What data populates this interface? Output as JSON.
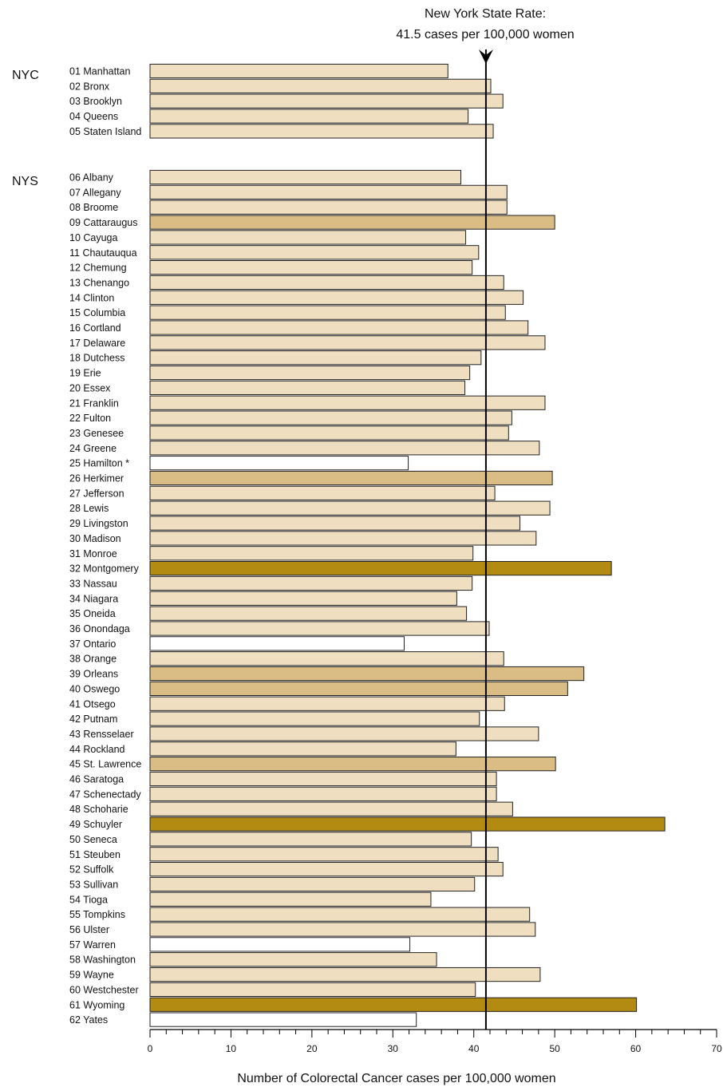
{
  "chart_data": {
    "type": "bar",
    "orientation": "horizontal",
    "xlabel": "Number of Colorectal Cancer cases per 100,000 women",
    "xlim": [
      0,
      70
    ],
    "xticks": [
      0,
      10,
      20,
      30,
      40,
      50,
      60,
      70
    ],
    "reference_line": {
      "value": 41.5,
      "label_line1": "New York State Rate:",
      "label_line2": "41.5 cases per 100,000 women"
    },
    "groups": [
      {
        "label": "NYC",
        "start_index": 0
      },
      {
        "label": "NYS",
        "start_index": 5
      }
    ],
    "colors": {
      "light": "#efdfc0",
      "medium": "#d9bd85",
      "dark": "#b38a12",
      "none": "#ffffff",
      "stroke": "#222222"
    },
    "categories": [
      "01 Manhattan",
      "02 Bronx",
      "03 Brooklyn",
      "04 Queens",
      "05 Staten Island",
      "06 Albany",
      "07 Allegany",
      "08 Broome",
      "09 Cattaraugus",
      "10 Cayuga",
      "11 Chautauqua",
      "12 Chemung",
      "13 Chenango",
      "14 Clinton",
      "15 Columbia",
      "16 Cortland",
      "17 Delaware",
      "18 Dutchess",
      "19 Erie",
      "20 Essex",
      "21 Franklin",
      "22 Fulton",
      "23 Genesee",
      "24 Greene",
      "25 Hamilton *",
      "26 Herkimer",
      "27 Jefferson",
      "28 Lewis",
      "29 Livingston",
      "30 Madison",
      "31 Monroe",
      "32 Montgomery",
      "33 Nassau",
      "34 Niagara",
      "35 Oneida",
      "36 Onondaga",
      "37 Ontario",
      "38 Orange",
      "39 Orleans",
      "40 Oswego",
      "41 Otsego",
      "42 Putnam",
      "43 Rensselaer",
      "44 Rockland",
      "45 St. Lawrence",
      "46 Saratoga",
      "47 Schenectady",
      "48 Schoharie",
      "49 Schuyler",
      "50 Seneca",
      "51 Steuben",
      "52 Suffolk",
      "53 Sullivan",
      "54 Tioga",
      "55 Tompkins",
      "56 Ulster",
      "57 Warren",
      "58 Washington",
      "59 Wayne",
      "60 Westchester",
      "61 Wyoming",
      "62 Yates"
    ],
    "values": [
      36.8,
      42.1,
      43.6,
      39.3,
      42.4,
      38.4,
      44.1,
      44.1,
      50.0,
      39.0,
      40.6,
      39.8,
      43.7,
      46.1,
      43.9,
      46.7,
      48.8,
      40.9,
      39.5,
      38.9,
      48.8,
      44.7,
      44.3,
      48.1,
      31.9,
      49.7,
      42.6,
      49.4,
      45.7,
      47.7,
      39.9,
      57.0,
      39.8,
      37.9,
      39.1,
      41.9,
      31.4,
      43.7,
      53.6,
      51.6,
      43.8,
      40.7,
      48.0,
      37.8,
      50.1,
      42.8,
      42.8,
      44.8,
      63.6,
      39.7,
      43.0,
      43.6,
      40.1,
      34.7,
      46.9,
      47.6,
      32.1,
      35.4,
      48.2,
      40.2,
      60.1,
      32.9
    ],
    "shading": [
      "light",
      "light",
      "light",
      "light",
      "light",
      "light",
      "light",
      "light",
      "medium",
      "light",
      "light",
      "light",
      "light",
      "light",
      "light",
      "light",
      "light",
      "light",
      "light",
      "light",
      "light",
      "light",
      "light",
      "light",
      "none",
      "medium",
      "light",
      "light",
      "light",
      "light",
      "light",
      "dark",
      "light",
      "light",
      "light",
      "light",
      "none",
      "light",
      "medium",
      "medium",
      "light",
      "light",
      "light",
      "light",
      "medium",
      "light",
      "light",
      "light",
      "dark",
      "light",
      "light",
      "light",
      "light",
      "light",
      "light",
      "light",
      "none",
      "light",
      "light",
      "light",
      "dark",
      "none"
    ]
  }
}
